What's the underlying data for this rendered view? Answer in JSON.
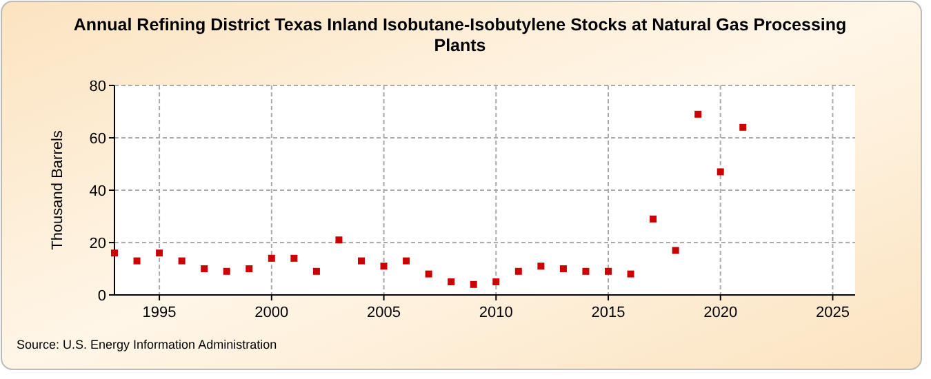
{
  "chart_data": {
    "type": "scatter",
    "title": "Annual Refining District Texas Inland Isobutane-Isobutylene Stocks at Natural Gas Processing Plants",
    "ylabel": "Thousand Barrels",
    "x": [
      1993,
      1994,
      1995,
      1996,
      1997,
      1998,
      1999,
      2000,
      2001,
      2002,
      2003,
      2004,
      2005,
      2006,
      2007,
      2008,
      2009,
      2010,
      2011,
      2012,
      2013,
      2014,
      2015,
      2016,
      2017,
      2018,
      2019,
      2020,
      2021
    ],
    "series": [
      {
        "color": "#cc0000",
        "values": [
          16,
          13,
          16,
          13,
          10,
          9,
          10,
          14,
          14,
          9,
          21,
          13,
          11,
          13,
          8,
          5,
          4,
          5,
          9,
          11,
          10,
          9,
          9,
          8,
          29,
          17,
          69,
          47,
          64
        ]
      }
    ],
    "xlim": [
      1993,
      2026
    ],
    "xticks": [
      1995,
      2000,
      2005,
      2010,
      2015,
      2020,
      2025
    ],
    "ylim": [
      0,
      80
    ],
    "yticks": [
      0,
      20,
      40,
      60,
      80
    ],
    "grid": true,
    "marker": "square",
    "annotations": [
      "Source: U.S. Energy Information Administration"
    ]
  }
}
